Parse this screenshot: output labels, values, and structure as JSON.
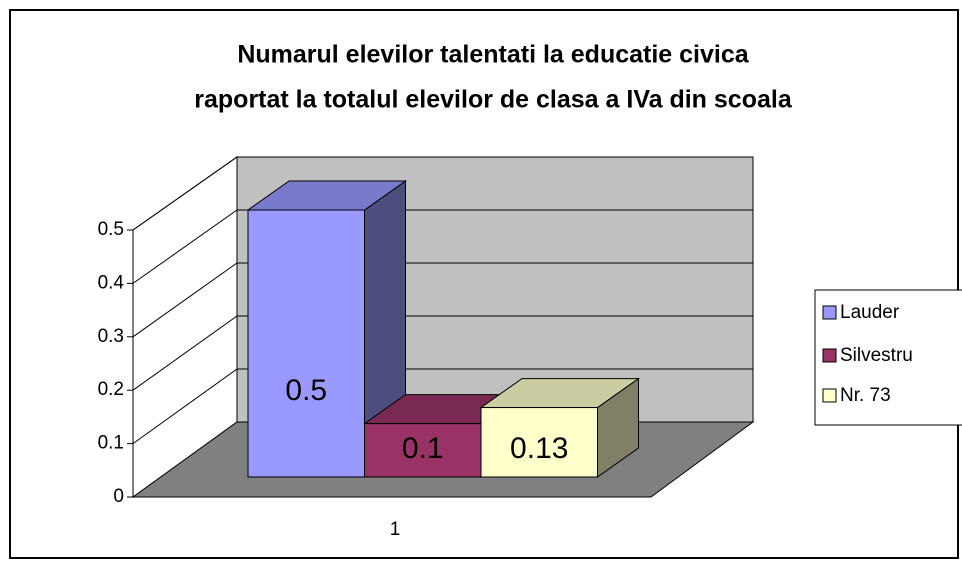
{
  "chart_data": {
    "type": "bar3d",
    "title": [
      "Numarul elevilor talentati la educatie civica",
      "raportat la totalul elevilor de clasa a IVa din scoala"
    ],
    "categories": [
      "1"
    ],
    "series": [
      {
        "name": "Lauder",
        "color": "#9999FF",
        "values": [
          0.5
        ]
      },
      {
        "name": "Silvestru",
        "color": "#993366",
        "values": [
          0.1
        ]
      },
      {
        "name": "Nr. 73",
        "color": "#FFFFCC",
        "values": [
          0.13
        ]
      }
    ],
    "ylim": [
      0,
      0.5
    ],
    "yticks": [
      0,
      0.1,
      0.2,
      0.3,
      0.4,
      0.5
    ],
    "grid": true,
    "legend": "right"
  }
}
